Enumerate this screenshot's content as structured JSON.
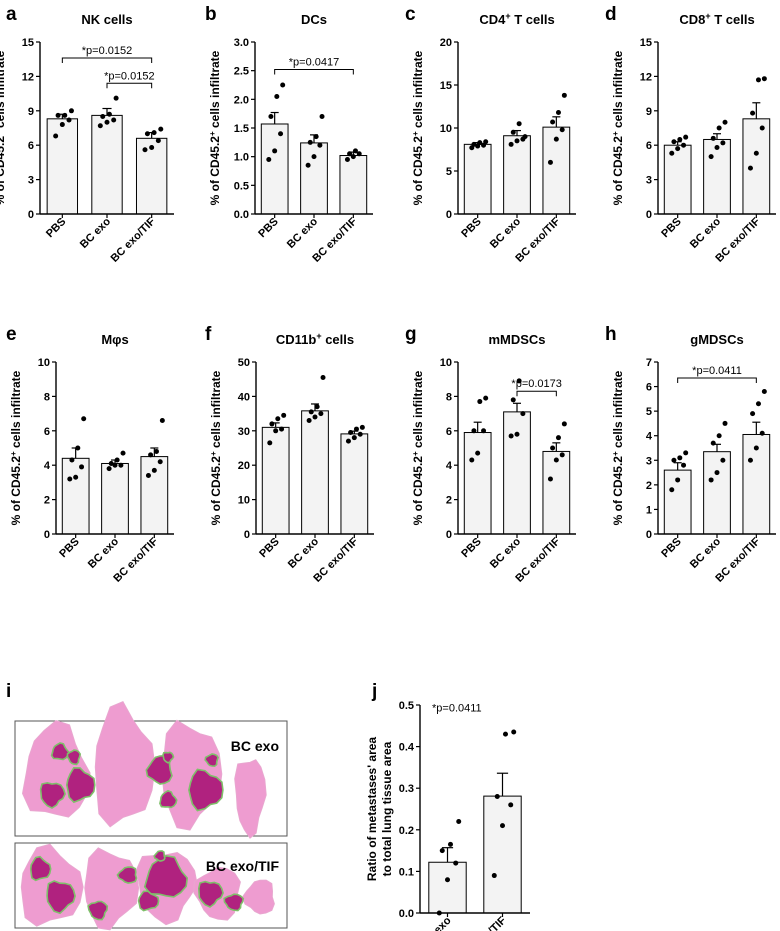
{
  "chart_data": [
    {
      "letter": "a",
      "type": "bar",
      "title": "NK cells",
      "title_sup": "",
      "ylabel": "% of CD45.2+ cells infiltrate",
      "categories": [
        "PBS",
        "BC exo",
        "BC exo/TIF"
      ],
      "values": [
        8.3,
        8.6,
        6.6
      ],
      "errors": [
        0.4,
        0.6,
        0.5
      ],
      "points": [
        [
          6.8,
          7.8,
          8.2,
          8.6,
          8.6,
          9.0
        ],
        [
          7.7,
          8.0,
          8.2,
          8.5,
          8.7,
          10.1
        ],
        [
          5.6,
          5.8,
          6.4,
          7.0,
          7.1,
          7.4
        ]
      ],
      "ylim": [
        0,
        15
      ],
      "yticks": [
        0,
        3,
        6,
        9,
        12,
        15
      ],
      "annotations": [
        {
          "text": "*p=0.0152",
          "from": 0,
          "to": 2,
          "y": 13.6
        },
        {
          "text": "*p=0.0152",
          "from": 1,
          "to": 2,
          "y": 11.4
        }
      ]
    },
    {
      "letter": "b",
      "type": "bar",
      "title": "DCs",
      "title_sup": "",
      "ylabel": "% of CD45.2+ cells infiltrate",
      "categories": [
        "PBS",
        "BC exo",
        "BC exo/TIF"
      ],
      "values": [
        1.57,
        1.24,
        1.02
      ],
      "errors": [
        0.2,
        0.14,
        0.06
      ],
      "points": [
        [
          0.95,
          1.1,
          1.4,
          1.7,
          2.05,
          2.25
        ],
        [
          0.85,
          1.0,
          1.2,
          1.25,
          1.35,
          1.7
        ],
        [
          0.95,
          1.0,
          1.05,
          1.05,
          1.1
        ]
      ],
      "ylim": [
        0,
        3
      ],
      "yticks": [
        0.0,
        0.5,
        1.0,
        1.5,
        2.0,
        2.5,
        3.0
      ],
      "annotations": [
        {
          "text": "*p=0.0417",
          "from": 0,
          "to": 2,
          "y": 2.52
        }
      ]
    },
    {
      "letter": "c",
      "type": "bar",
      "title": "CD4",
      "title_sup": "+",
      "title_post": " T cells",
      "ylabel": "% of CD45.2+ cells infiltrate",
      "categories": [
        "PBS",
        "BC exo",
        "BC exo/TIF"
      ],
      "values": [
        8.1,
        9.1,
        10.1
      ],
      "errors": [
        0.2,
        0.6,
        1.2
      ],
      "points": [
        [
          7.7,
          7.9,
          8.0,
          8.1,
          8.3,
          8.4
        ],
        [
          8.1,
          8.5,
          8.7,
          9.5,
          10.5,
          9.0
        ],
        [
          6.0,
          8.7,
          9.8,
          10.7,
          11.8,
          13.8
        ]
      ],
      "ylim": [
        0,
        20
      ],
      "yticks": [
        0,
        5,
        10,
        15,
        20
      ],
      "annotations": []
    },
    {
      "letter": "d",
      "type": "bar",
      "title": "CD8",
      "title_sup": "+",
      "title_post": " T cells",
      "ylabel": "% of CD45.2+ cells infiltrate",
      "categories": [
        "PBS",
        "BC exo",
        "BC exo/TIF"
      ],
      "values": [
        6.0,
        6.5,
        8.3
      ],
      "errors": [
        0.3,
        0.5,
        1.4
      ],
      "points": [
        [
          5.3,
          5.7,
          6.0,
          6.3,
          6.5,
          6.7
        ],
        [
          5.0,
          5.8,
          6.2,
          6.6,
          7.5,
          8.0
        ],
        [
          4.0,
          5.3,
          7.5,
          8.8,
          11.7,
          11.8
        ]
      ],
      "ylim": [
        0,
        15
      ],
      "yticks": [
        0,
        3,
        6,
        9,
        12,
        15
      ],
      "annotations": []
    },
    {
      "letter": "e",
      "type": "bar",
      "title": "Mφs",
      "title_sup": "",
      "ylabel": "% of CD45.2+ cells infiltrate",
      "categories": [
        "PBS",
        "BC exo",
        "BC exo/TIF"
      ],
      "values": [
        4.4,
        4.1,
        4.5
      ],
      "errors": [
        0.6,
        0.2,
        0.5
      ],
      "points": [
        [
          3.2,
          3.3,
          3.9,
          4.3,
          5.0,
          6.7
        ],
        [
          3.8,
          4.0,
          4.0,
          4.1,
          4.3,
          4.7
        ],
        [
          3.4,
          3.7,
          4.2,
          4.6,
          4.8,
          6.6
        ]
      ],
      "ylim": [
        0,
        10
      ],
      "yticks": [
        0,
        2,
        4,
        6,
        8,
        10
      ],
      "annotations": []
    },
    {
      "letter": "f",
      "type": "bar",
      "title": "CD11b",
      "title_sup": "+",
      "title_post": " cells",
      "ylabel": "% of CD45.2+ cells infiltrate",
      "categories": [
        "PBS",
        "BC exo",
        "BC exo/TIF"
      ],
      "values": [
        31.0,
        35.8,
        29.1
      ],
      "errors": [
        1.3,
        2.0,
        0.8
      ],
      "points": [
        [
          26.5,
          30.0,
          30.5,
          32.0,
          33.5,
          34.5
        ],
        [
          33.0,
          34.0,
          35.0,
          35.5,
          37.0,
          45.5
        ],
        [
          27.0,
          28.0,
          29.0,
          29.5,
          30.5,
          31.0
        ]
      ],
      "ylim": [
        0,
        50
      ],
      "yticks": [
        0,
        10,
        20,
        30,
        40,
        50
      ],
      "annotations": []
    },
    {
      "letter": "g",
      "type": "bar",
      "title": "mMDSCs",
      "title_sup": "",
      "ylabel": "% of CD45.2+ cells infiltrate",
      "categories": [
        "PBS",
        "BC exo",
        "BC exo/TIF"
      ],
      "values": [
        5.9,
        7.1,
        4.8
      ],
      "errors": [
        0.6,
        0.5,
        0.5
      ],
      "points": [
        [
          4.3,
          4.7,
          6.0,
          6.0,
          7.7,
          7.9
        ],
        [
          5.7,
          5.8,
          7.0,
          7.8,
          8.9
        ],
        [
          3.2,
          4.3,
          4.6,
          5.0,
          5.6,
          6.4
        ]
      ],
      "ylim": [
        0,
        10
      ],
      "yticks": [
        0,
        2,
        4,
        6,
        8,
        10
      ],
      "annotations": [
        {
          "text": "*p=0.0173",
          "from": 1,
          "to": 2,
          "y": 8.3
        }
      ]
    },
    {
      "letter": "h",
      "type": "bar",
      "title": "gMDSCs",
      "title_sup": "",
      "ylabel": "% of CD45.2+ cells infiltrate",
      "categories": [
        "PBS",
        "BC exo",
        "BC exo/TIF"
      ],
      "values": [
        2.6,
        3.35,
        4.05
      ],
      "errors": [
        0.3,
        0.3,
        0.5
      ],
      "points": [
        [
          1.8,
          2.2,
          2.8,
          3.0,
          3.1,
          3.3
        ],
        [
          2.2,
          2.5,
          3.0,
          3.7,
          4.0,
          4.5
        ],
        [
          3.0,
          3.5,
          4.1,
          4.9,
          5.3,
          5.8
        ]
      ],
      "ylim": [
        0,
        7
      ],
      "yticks": [
        0,
        1,
        2,
        3,
        4,
        5,
        6,
        7
      ],
      "annotations": [
        {
          "text": "*p=0.0411",
          "from": 0,
          "to": 2,
          "y": 6.35
        }
      ]
    },
    {
      "letter": "j",
      "type": "bar",
      "title": "",
      "title_sup": "",
      "ylabel": "Ratio of metastases' area|to total lung tissue area",
      "categories": [
        "BC exo",
        "BC exo/TIF"
      ],
      "values": [
        0.122,
        0.281
      ],
      "errors": [
        0.035,
        0.055
      ],
      "points": [
        [
          0.0,
          0.08,
          0.12,
          0.15,
          0.165,
          0.22
        ],
        [
          0.09,
          0.21,
          0.26,
          0.28,
          0.43,
          0.435
        ]
      ],
      "ylim": [
        0,
        0.5
      ],
      "yticks": [
        0.0,
        0.1,
        0.2,
        0.3,
        0.4,
        0.5
      ],
      "annotations": [
        {
          "text": "*p=0.0411",
          "from": 0,
          "to": 0,
          "y": 0.475,
          "nobracket": true
        }
      ]
    }
  ],
  "histology": {
    "letter": "i",
    "images": [
      {
        "label": "BC exo"
      },
      {
        "label": "BC exo/TIF"
      }
    ],
    "colors": {
      "tissue": "#ee9cd0",
      "tumor": "#b0227f",
      "outline": "#7fbf6a",
      "background": "#ffffff"
    }
  },
  "style": {
    "bar_fill": "#f3f3f3",
    "ink": "#000000"
  }
}
